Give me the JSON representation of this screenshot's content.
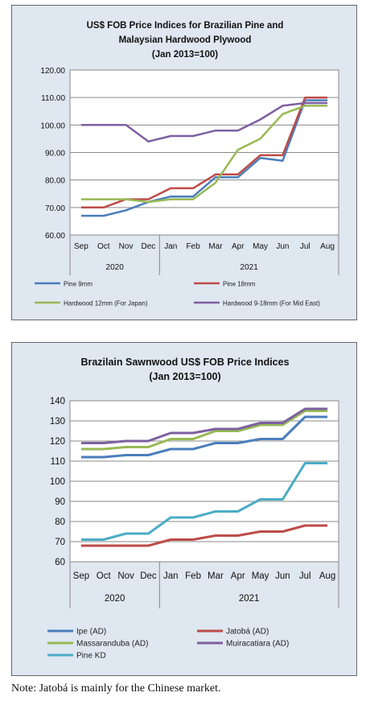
{
  "chart_data": [
    {
      "type": "line",
      "title": "US$ FOB Price Indices for Brazilian Pine and",
      "subtitle": "Malaysian Hardwood Plywood",
      "subtitle2": "(Jan 2013=100)",
      "categories": [
        "Sep",
        "Oct",
        "Nov",
        "Dec",
        "Jan",
        "Feb",
        "Mar",
        "Apr",
        "May",
        "Jun",
        "Jul",
        "Aug"
      ],
      "year_groups": [
        "2020",
        "2021"
      ],
      "ylim": [
        60,
        120
      ],
      "yticks": [
        "60.00",
        "70.00",
        "80.00",
        "90.00",
        "100.00",
        "110.00",
        "120.00"
      ],
      "grid": true,
      "legend_position": "bottom",
      "series": [
        {
          "name": "Pine 9mm",
          "color": "#4a7ebb",
          "values": [
            67,
            67,
            69,
            72,
            74,
            74,
            81,
            81,
            88,
            87,
            109,
            109
          ]
        },
        {
          "name": "Pine 18mm",
          "color": "#be4b48",
          "values": [
            70,
            70,
            73,
            73,
            77,
            77,
            82,
            82,
            89,
            89,
            110,
            110
          ]
        },
        {
          "name": "Hardwood 12mm (For Japan)",
          "color": "#98b954",
          "values": [
            73,
            73,
            73,
            72,
            73,
            73,
            79,
            91,
            95,
            104,
            107,
            107
          ]
        },
        {
          "name": "Hardwood 9-18mm (For Mid East)",
          "color": "#7d60a0",
          "values": [
            100,
            100,
            100,
            94,
            96,
            96,
            98,
            98,
            102,
            107,
            108,
            108
          ]
        }
      ]
    },
    {
      "type": "line",
      "title": "Brazilain Sawnwood US$ FOB Price Indices",
      "subtitle": "(Jan 2013=100)",
      "categories": [
        "Sep",
        "Oct",
        "Nov",
        "Dec",
        "Jan",
        "Feb",
        "Mar",
        "Apr",
        "May",
        "Jun",
        "Jul",
        "Aug"
      ],
      "year_groups": [
        "2020",
        "2021"
      ],
      "ylim": [
        60,
        140
      ],
      "yticks": [
        "60",
        "70",
        "80",
        "90",
        "100",
        "110",
        "120",
        "130",
        "140"
      ],
      "grid": true,
      "legend_position": "bottom",
      "series": [
        {
          "name": "Ipe (AD)",
          "color": "#4a7ebb",
          "values": [
            112,
            112,
            113,
            113,
            116,
            116,
            119,
            119,
            121,
            121,
            132,
            132
          ]
        },
        {
          "name": "Jatobá (AD)",
          "color": "#be4b48",
          "values": [
            68,
            68,
            68,
            68,
            71,
            71,
            73,
            73,
            75,
            75,
            78,
            78
          ]
        },
        {
          "name": "Massaranduba (AD)",
          "color": "#98b954",
          "values": [
            116,
            116,
            117,
            117,
            121,
            121,
            125,
            125,
            128,
            128,
            135,
            135
          ]
        },
        {
          "name": "Muiracatiara (AD)",
          "color": "#7d60a0",
          "values": [
            119,
            119,
            120,
            120,
            124,
            124,
            126,
            126,
            129,
            129,
            136,
            136
          ]
        },
        {
          "name": "Pine KD",
          "color": "#4bacc6",
          "values": [
            71,
            71,
            74,
            74,
            82,
            82,
            85,
            85,
            91,
            91,
            109,
            109
          ]
        }
      ]
    }
  ],
  "note": "Note: Jatobá is mainly for the Chinese market."
}
